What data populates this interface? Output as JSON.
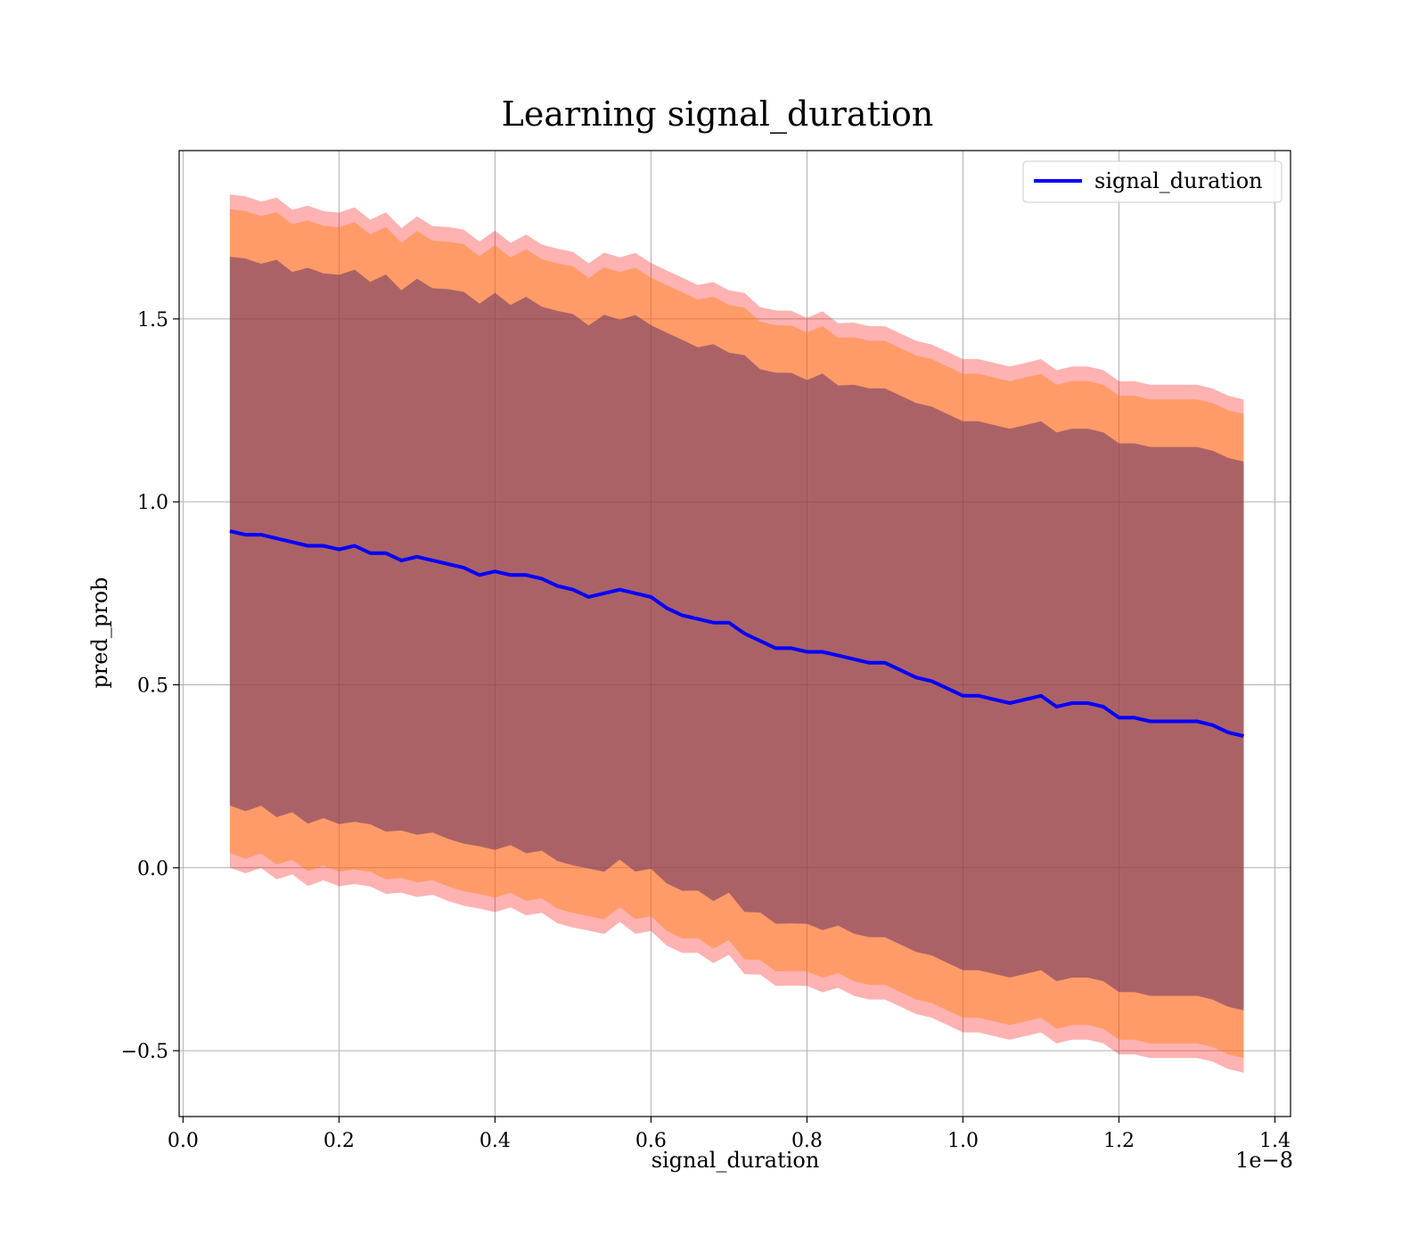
{
  "chart_data": {
    "type": "area",
    "title": "Learning signal_duration",
    "xlabel": "signal_duration",
    "ylabel": "pred_prob",
    "x_offset_label": "1e−8",
    "xlim": [
      -0.005,
      1.42
    ],
    "ylim": [
      -0.68,
      1.96
    ],
    "xticks": [
      0.0,
      0.2,
      0.4,
      0.6,
      0.8,
      1.0,
      1.2,
      1.4
    ],
    "xtick_labels": [
      "0.0",
      "0.2",
      "0.4",
      "0.6",
      "0.8",
      "1.0",
      "1.2",
      "1.4"
    ],
    "yticks": [
      -0.5,
      0.0,
      0.5,
      1.0,
      1.5
    ],
    "ytick_labels": [
      "−0.5",
      "0.0",
      "0.5",
      "1.0",
      "1.5"
    ],
    "grid": true,
    "legend": {
      "position": "upper-right",
      "entries": [
        "signal_duration"
      ]
    },
    "colors": {
      "line": "#0000ff",
      "band_outer": "#ff0000",
      "band_middle": "#ff7f0e",
      "band_inner": "#663366"
    },
    "x": [
      0.06,
      0.08,
      0.1,
      0.12,
      0.14,
      0.16,
      0.18,
      0.2,
      0.22,
      0.24,
      0.26,
      0.28,
      0.3,
      0.32,
      0.34,
      0.36,
      0.38,
      0.4,
      0.42,
      0.44,
      0.46,
      0.48,
      0.5,
      0.52,
      0.54,
      0.56,
      0.58,
      0.6,
      0.62,
      0.64,
      0.66,
      0.68,
      0.7,
      0.72,
      0.74,
      0.76,
      0.78,
      0.8,
      0.82,
      0.84,
      0.86,
      0.88,
      0.9,
      0.92,
      0.94,
      0.96,
      0.98,
      1.0,
      1.02,
      1.04,
      1.06,
      1.08,
      1.1,
      1.12,
      1.14,
      1.16,
      1.18,
      1.2,
      1.22,
      1.24,
      1.26,
      1.28,
      1.3,
      1.32,
      1.34,
      1.36
    ],
    "series": [
      {
        "name": "signal_duration",
        "values": [
          0.92,
          0.91,
          0.91,
          0.9,
          0.89,
          0.88,
          0.88,
          0.87,
          0.88,
          0.86,
          0.86,
          0.84,
          0.85,
          0.84,
          0.83,
          0.82,
          0.8,
          0.81,
          0.8,
          0.8,
          0.79,
          0.77,
          0.76,
          0.74,
          0.75,
          0.76,
          0.75,
          0.74,
          0.71,
          0.69,
          0.68,
          0.67,
          0.67,
          0.64,
          0.62,
          0.6,
          0.6,
          0.59,
          0.59,
          0.58,
          0.57,
          0.56,
          0.56,
          0.54,
          0.52,
          0.51,
          0.49,
          0.47,
          0.47,
          0.46,
          0.45,
          0.46,
          0.47,
          0.44,
          0.45,
          0.45,
          0.44,
          0.41,
          0.41,
          0.4,
          0.4,
          0.4,
          0.4,
          0.39,
          0.37,
          0.36
        ]
      }
    ],
    "bands": [
      {
        "color": "band_outer",
        "offset": 0.92
      },
      {
        "color": "band_middle",
        "offset": 0.88
      },
      {
        "color": "band_inner",
        "offset": 0.75
      }
    ]
  }
}
